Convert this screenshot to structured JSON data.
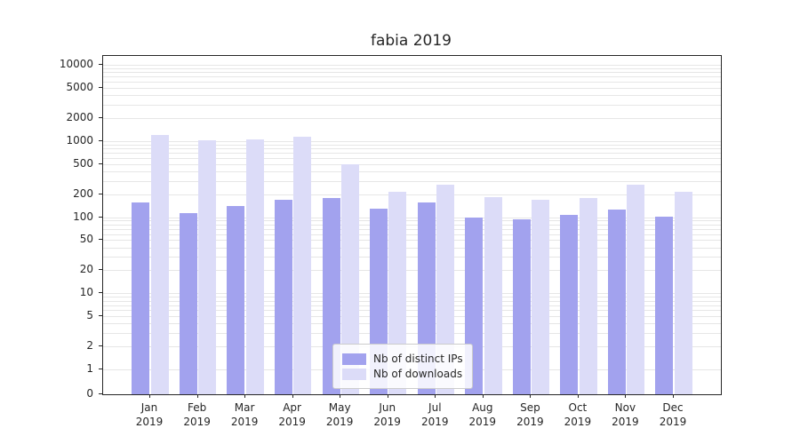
{
  "chart_data": {
    "type": "bar",
    "title": "fabia 2019",
    "categories": [
      "Jan",
      "Feb",
      "Mar",
      "Apr",
      "May",
      "Jun",
      "Jul",
      "Aug",
      "Sep",
      "Oct",
      "Nov",
      "Dec"
    ],
    "year": "2019",
    "series": [
      {
        "name": "Nb of distinct IPs",
        "color": "#a2a2ee",
        "values": [
          155,
          112,
          140,
          170,
          180,
          130,
          158,
          98,
          93,
          107,
          125,
          102
        ]
      },
      {
        "name": "Nb of downloads",
        "color": "#dcdcf8",
        "values": [
          1200,
          1020,
          1060,
          1150,
          500,
          215,
          270,
          185,
          170,
          180,
          270,
          215
        ]
      }
    ],
    "yscale": "symlog",
    "yticks": [
      0,
      1,
      2,
      5,
      10,
      20,
      50,
      100,
      200,
      500,
      1000,
      2000,
      5000,
      10000
    ],
    "ylim": [
      0,
      13000
    ],
    "grid": "horizontal-minor-log",
    "grid_color": "#e6e6e6",
    "legend_position": "lower-center-inside",
    "background": "#ffffff"
  }
}
